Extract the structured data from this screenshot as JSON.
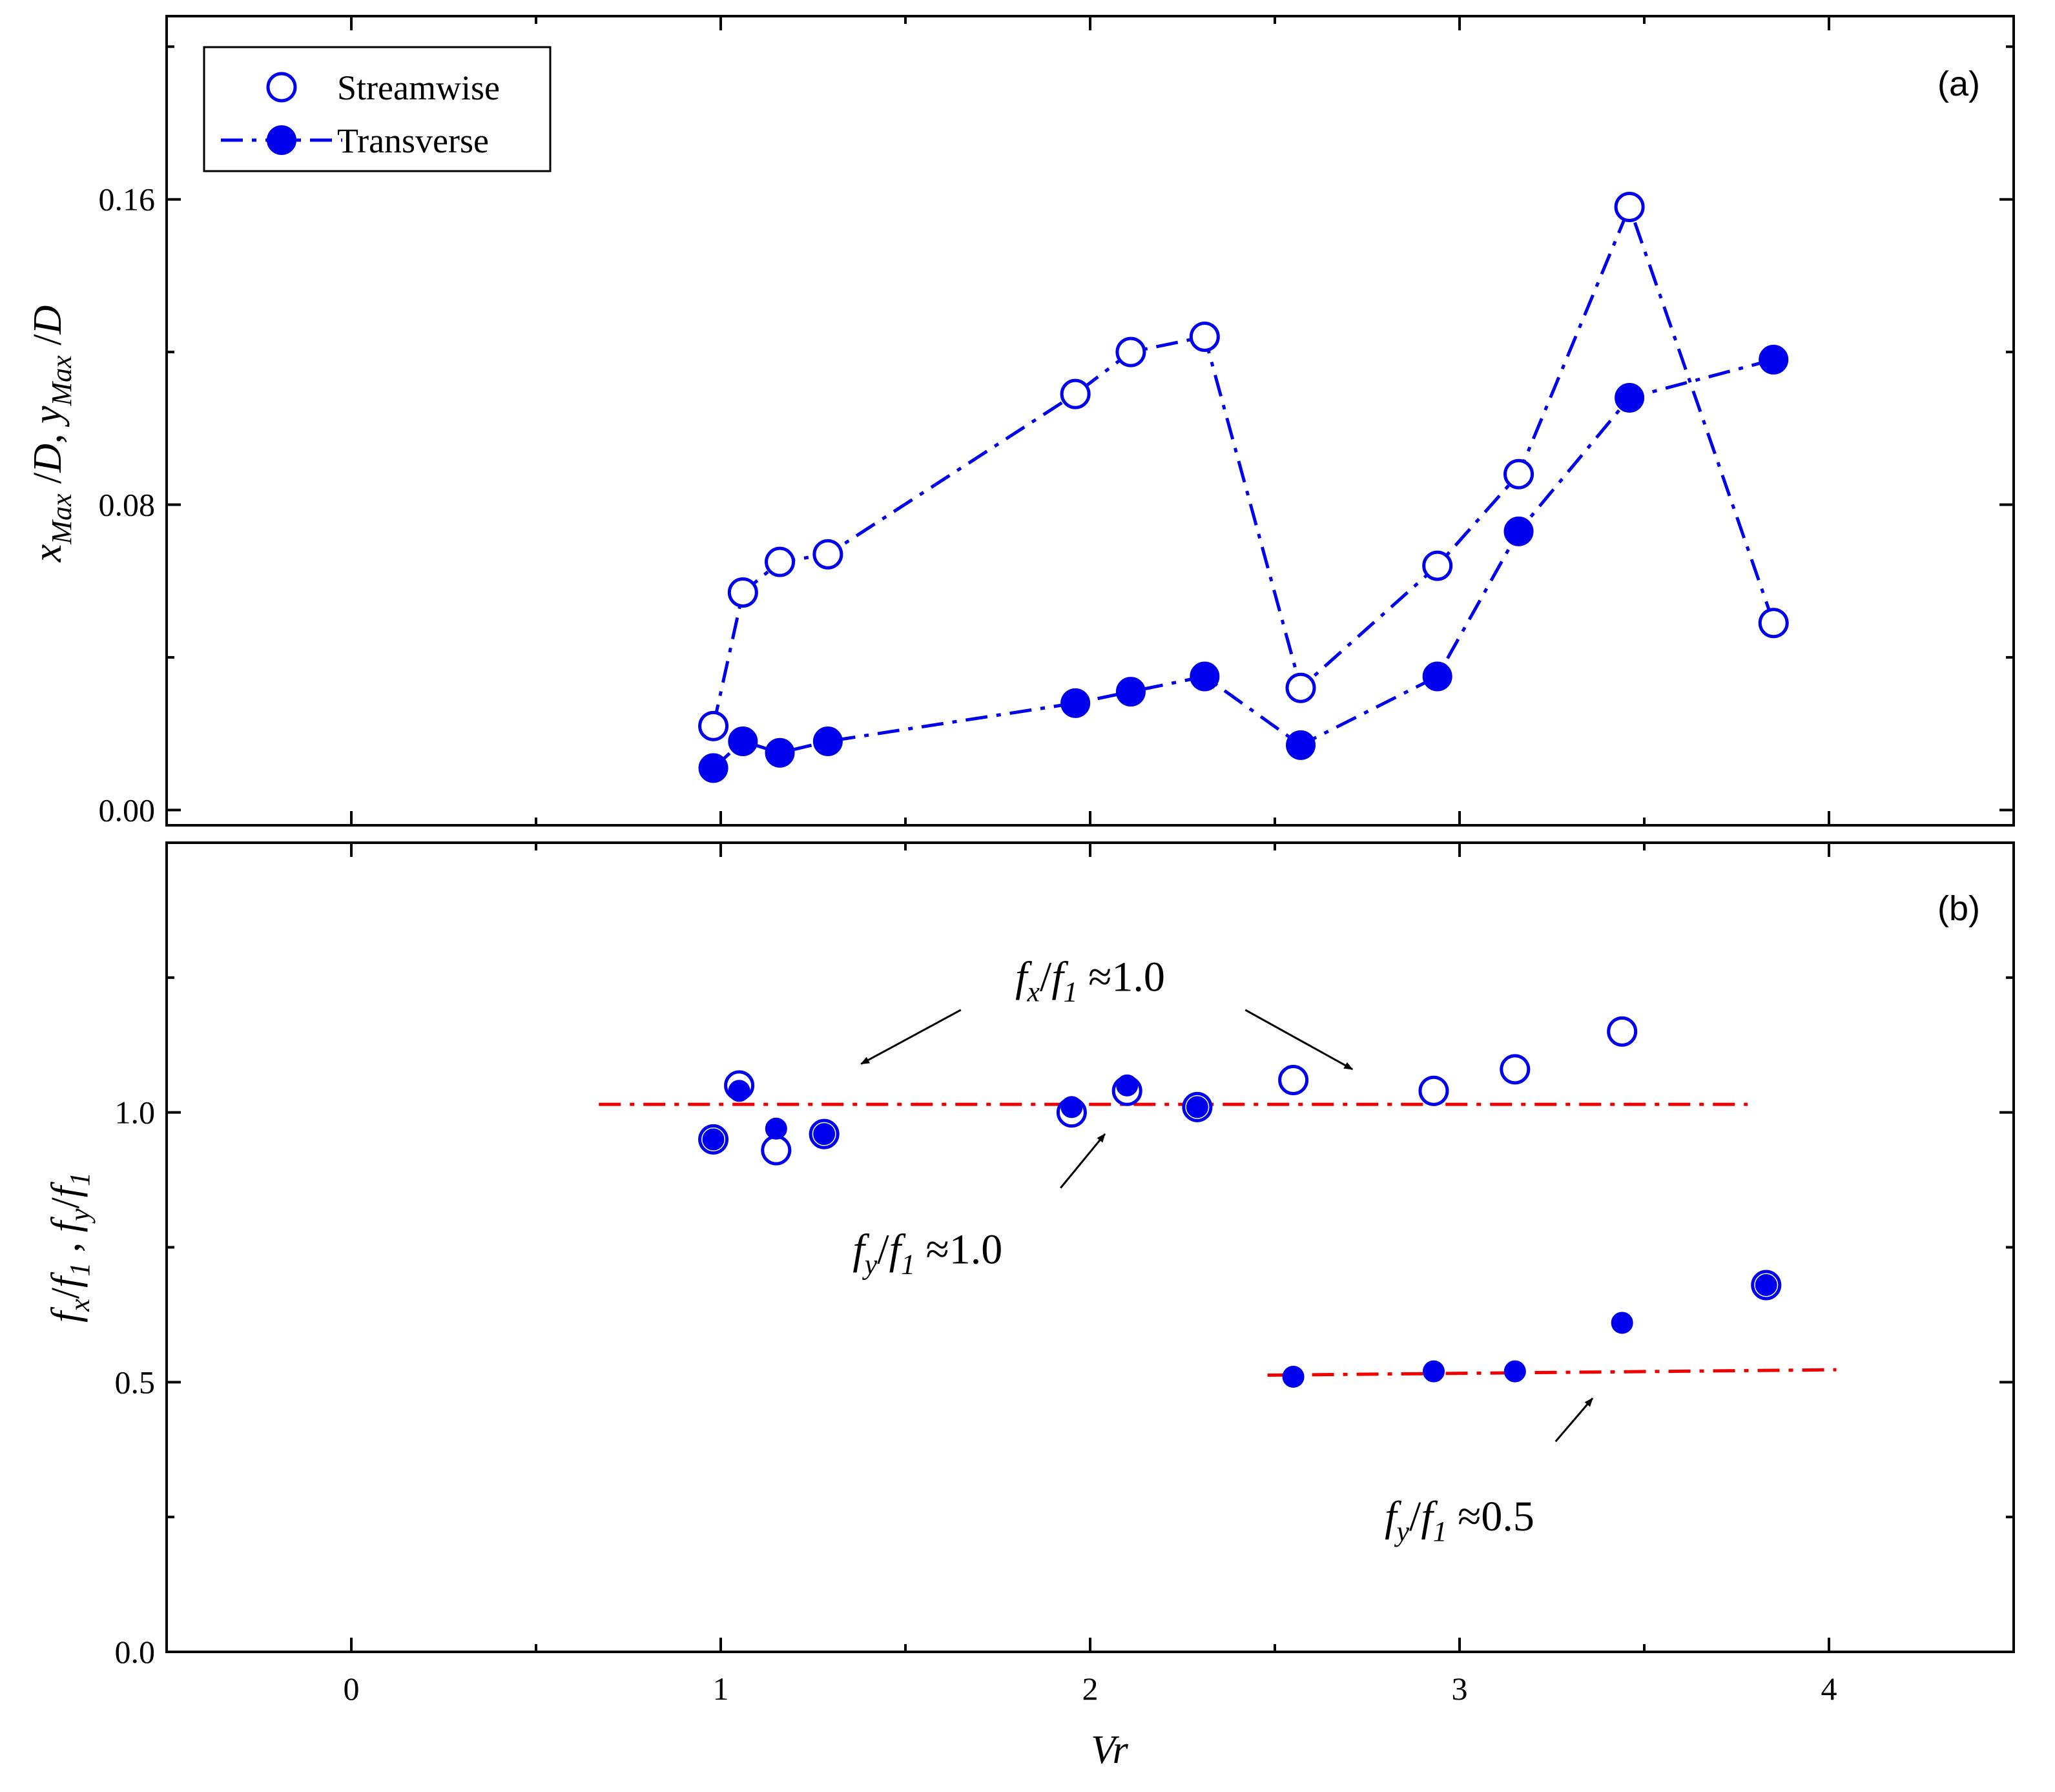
{
  "chart_data": [
    {
      "type": "line",
      "panel_label": "(a)",
      "ylabel_parts": [
        {
          "t": "x",
          "italic": true
        },
        {
          "t": "Max",
          "italic": true,
          "sub": true
        },
        {
          "t": " /",
          "italic": false
        },
        {
          "t": "D",
          "italic": true
        },
        {
          "t": ",  ",
          "italic": false
        },
        {
          "t": "y",
          "italic": true
        },
        {
          "t": "Max",
          "italic": true,
          "sub": true
        },
        {
          "t": " /",
          "italic": false
        },
        {
          "t": "D",
          "italic": true
        }
      ],
      "xlim": [
        -0.5,
        4.5
      ],
      "ylim": [
        -0.004,
        0.208
      ],
      "yticks": [
        0.0,
        0.08,
        0.16
      ],
      "ytick_labels": [
        "0.00",
        "0.08",
        "0.16"
      ],
      "xticks": [
        0,
        1,
        2,
        3,
        4
      ],
      "legend_position": "top-left",
      "series": [
        {
          "name": "Streamwise",
          "marker": "open-circle",
          "line": "dash-dot",
          "color": "#0000ee",
          "x": [
            0.98,
            1.06,
            1.16,
            1.29,
            1.96,
            2.11,
            2.31,
            2.57,
            2.94,
            3.16,
            3.46,
            3.85
          ],
          "y": [
            0.022,
            0.057,
            0.065,
            0.067,
            0.109,
            0.12,
            0.124,
            0.032,
            0.064,
            0.088,
            0.158,
            0.049
          ]
        },
        {
          "name": "Transverse",
          "marker": "filled-circle",
          "line": "dash-dot",
          "color": "#0000ee",
          "x": [
            0.98,
            1.06,
            1.16,
            1.29,
            1.96,
            2.11,
            2.31,
            2.57,
            2.94,
            3.16,
            3.46,
            3.85
          ],
          "y": [
            0.011,
            0.018,
            0.015,
            0.018,
            0.028,
            0.031,
            0.035,
            0.017,
            0.035,
            0.073,
            0.108,
            0.118
          ]
        }
      ]
    },
    {
      "type": "scatter",
      "panel_label": "(b)",
      "xlabel": "Vr",
      "ylabel_parts": [
        {
          "t": "f",
          "italic": true
        },
        {
          "t": "x",
          "italic": true,
          "sub": true
        },
        {
          "t": "/",
          "italic": false
        },
        {
          "t": "f",
          "italic": true
        },
        {
          "t": "1",
          "italic": true,
          "sub": true
        },
        {
          "t": " , ",
          "italic": false
        },
        {
          "t": "f",
          "italic": true
        },
        {
          "t": "y",
          "italic": true,
          "sub": true
        },
        {
          "t": "/",
          "italic": false
        },
        {
          "t": "f",
          "italic": true
        },
        {
          "t": "1",
          "italic": true,
          "sub": true
        }
      ],
      "xlim": [
        -0.5,
        4.5
      ],
      "ylim": [
        0.0,
        1.5
      ],
      "yticks": [
        0.0,
        0.5,
        1.0
      ],
      "ytick_labels": [
        "0.0",
        "0.5",
        "1.0"
      ],
      "xticks": [
        0,
        1,
        2,
        3,
        4
      ],
      "xtick_labels": [
        "0",
        "1",
        "2",
        "3",
        "4"
      ],
      "series": [
        {
          "marker": "open-circle",
          "color": "#0000ee",
          "x": [
            0.98,
            1.05,
            1.15,
            1.28,
            1.95,
            2.1,
            2.29,
            2.55,
            2.93,
            3.15,
            3.44,
            3.83
          ],
          "y": [
            0.95,
            1.05,
            0.93,
            0.96,
            1.0,
            1.04,
            1.01,
            1.06,
            1.04,
            1.08,
            1.15,
            0.68
          ]
        },
        {
          "marker": "filled-circle",
          "color": "#0000ee",
          "x": [
            0.98,
            1.05,
            1.15,
            1.28,
            1.95,
            2.1,
            2.29,
            2.55,
            2.93,
            3.15,
            3.44,
            3.83
          ],
          "y": [
            0.95,
            1.04,
            0.97,
            0.96,
            1.01,
            1.05,
            1.01,
            0.51,
            0.52,
            0.52,
            0.61,
            0.68
          ]
        }
      ],
      "reference_lines": [
        {
          "x": [
            0.67,
            3.78
          ],
          "y": [
            1.015,
            1.015
          ],
          "color": "#ee0000",
          "style": "dash-dot"
        },
        {
          "x": [
            2.48,
            4.02
          ],
          "y": [
            0.513,
            0.523
          ],
          "color": "#ee0000",
          "style": "dash-dot"
        }
      ],
      "annotations": [
        {
          "parts": [
            {
              "t": "f",
              "i": true
            },
            {
              "t": "x",
              "i": true,
              "sub": true
            },
            {
              "t": "/",
              "i": false
            },
            {
              "t": "f",
              "i": true
            },
            {
              "t": "1",
              "i": true,
              "sub": true
            },
            {
              "t": " ≈1.0",
              "i": false
            }
          ],
          "x": 2.0,
          "y": 1.225,
          "arrows": [
            {
              "from": [
                1.65,
                1.19
              ],
              "to": [
                1.38,
                1.09
              ]
            },
            {
              "from": [
                2.42,
                1.19
              ],
              "to": [
                2.71,
                1.08
              ]
            }
          ]
        },
        {
          "parts": [
            {
              "t": "f",
              "i": true
            },
            {
              "t": "y",
              "i": true,
              "sub": true
            },
            {
              "t": "/",
              "i": false
            },
            {
              "t": "f",
              "i": true
            },
            {
              "t": "1",
              "i": true,
              "sub": true
            },
            {
              "t": " ≈1.0",
              "i": false
            }
          ],
          "x": 1.56,
          "y": 0.72,
          "arrows": [
            {
              "from": [
                1.92,
                0.86
              ],
              "to": [
                2.04,
                0.96
              ]
            }
          ]
        },
        {
          "parts": [
            {
              "t": "f",
              "i": true
            },
            {
              "t": "y",
              "i": true,
              "sub": true
            },
            {
              "t": "/",
              "i": false
            },
            {
              "t": "f",
              "i": true
            },
            {
              "t": "1",
              "i": true,
              "sub": true
            },
            {
              "t": " ≈0.5",
              "i": false
            }
          ],
          "x": 3.0,
          "y": 0.225,
          "arrows": [
            {
              "from": [
                3.26,
                0.39
              ],
              "to": [
                3.36,
                0.47
              ]
            }
          ]
        }
      ]
    }
  ]
}
